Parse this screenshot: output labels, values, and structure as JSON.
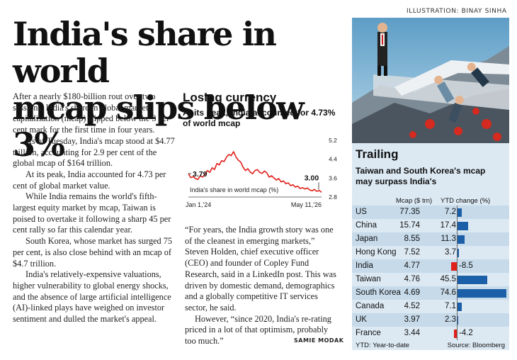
{
  "credit": "ILLUSTRATION: BINAY SINHA",
  "headline": [
    "India's share in world",
    "mcap slips below 3%"
  ],
  "column1": [
    "After a nearly $180-billion rout over two sessions, India's share in global market capitalisation (mcap) slipped below the 3 per cent mark for the first time in four years.",
    "As of Tuesday, India's mcap stood at $4.77 trillion, accounting for 2.9 per cent of the global mcap of $164 trillion.",
    "At its peak, India accounted for 4.73 per cent of global market value.",
    "While India remains the world's fifth-largest equity market by mcap, Taiwan is poised to overtake it following a sharp 45 per cent rally so far this calendar year.",
    "South Korea, whose market has surged 75 per cent, is also close behind with an mcap of $4.7 trillion.",
    "India's relatively-expensive valuations, higher vulnerability to global energy shocks, and the absence of large artificial intelligence (AI)-linked plays have weighed on investor sentiment and dulled the market's appeal."
  ],
  "column2": [
    "“For years, the India growth story was one of the cleanest in emerging markets,” Steven Holden, chief executive officer (CEO) and founder of Copley Fund Research, said in a LinkedIn post. This was driven by domestic demand, demographics and a globally competitive IT services sector, he said.",
    "However, “since 2020, India's re-rating priced in a lot of that optimism, probably too much.”"
  ],
  "byline": "SAMIE MODAK",
  "chart": {
    "title": "Losing currency",
    "subtitle": "At its peak, India accounted for 4.73% of world mcap"
  },
  "chart_data": [
    {
      "type": "line",
      "series": [
        {
          "name": "India's share in world mcap (%)",
          "values": [
            3.79,
            3.62,
            3.66,
            3.58,
            3.54,
            3.7,
            3.64,
            3.76,
            3.92,
            3.84,
            4.04,
            3.96,
            4.22,
            4.16,
            4.34,
            4.3,
            4.48,
            4.6,
            4.55,
            4.72,
            4.5,
            4.36,
            4.28,
            4.06,
            3.92,
            4.0,
            3.86,
            3.78,
            3.92,
            3.96,
            3.84,
            3.8,
            3.9,
            3.82,
            3.64,
            3.7,
            3.6,
            3.52,
            3.58,
            3.44,
            3.48,
            3.36,
            3.4,
            3.28,
            3.32,
            3.22,
            3.26,
            3.16,
            3.2,
            3.14,
            3.18,
            3.1,
            3.06,
            3.12,
            3.04,
            3.08,
            3.0
          ]
        }
      ],
      "x_start_label": "Jan 1,'24",
      "x_end_label": "May 11,'26",
      "start_label": "3.79",
      "end_label": "3.00",
      "yticks": [
        "5.2",
        "4.4",
        "3.6",
        "2.8"
      ],
      "ylim": [
        2.8,
        5.2
      ],
      "color": "#e0201a",
      "grid": false
    },
    {
      "type": "bar",
      "title": "Trailing",
      "subtitle": "Taiwan and South Korea's mcap may  surpass India's",
      "columns": [
        "Mcap ($ trn)",
        "YTD change (%)"
      ],
      "categories": [
        "US",
        "China",
        "Japan",
        "Hong Kong",
        "India",
        "Taiwan",
        "South Korea",
        "Canada",
        "UK",
        "France"
      ],
      "mcap": [
        "77.35",
        "15.74",
        "8.55",
        "7.52",
        "4.77",
        "4.76",
        "4.69",
        "4.52",
        "3.97",
        "3.44"
      ],
      "values": [
        7.2,
        17.4,
        11.3,
        3.7,
        -8.5,
        45.5,
        74.6,
        7.1,
        2.3,
        -4.2
      ],
      "value_labels": [
        "7.2",
        "17.4",
        "11.3",
        "3.7",
        "-8.5",
        "45.5",
        "74.6",
        "7.1",
        "2.3",
        "-4.2"
      ],
      "positive_color": "#1b5fa8",
      "negative_color": "#e0201a",
      "footnote": "YTD: Year-to-date",
      "source": "Source: Bloomberg"
    }
  ]
}
